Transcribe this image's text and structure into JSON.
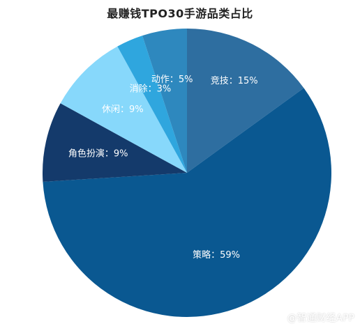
{
  "chart_data": {
    "type": "pie",
    "title": "最赚钱TPO30手游品类占比",
    "slices": [
      {
        "name": "竞技",
        "value": 15,
        "label": "竞技：15%",
        "color": "#2E6EA0"
      },
      {
        "name": "策略",
        "value": 59,
        "label": "策略：59%",
        "color": "#0A5891"
      },
      {
        "name": "角色扮演",
        "value": 9,
        "label": "角色扮演：9%",
        "color": "#143A6B"
      },
      {
        "name": "休闲",
        "value": 9,
        "label": "休闲：9%",
        "color": "#87D8FB"
      },
      {
        "name": "消除",
        "value": 3,
        "label": "消除：3%",
        "color": "#2FA6DE"
      },
      {
        "name": "动作",
        "value": 5,
        "label": "动作：5%",
        "color": "#2E88BE"
      }
    ],
    "start_angle_deg": 0,
    "direction": "clockwise"
  },
  "watermark": "@智通财经APP"
}
